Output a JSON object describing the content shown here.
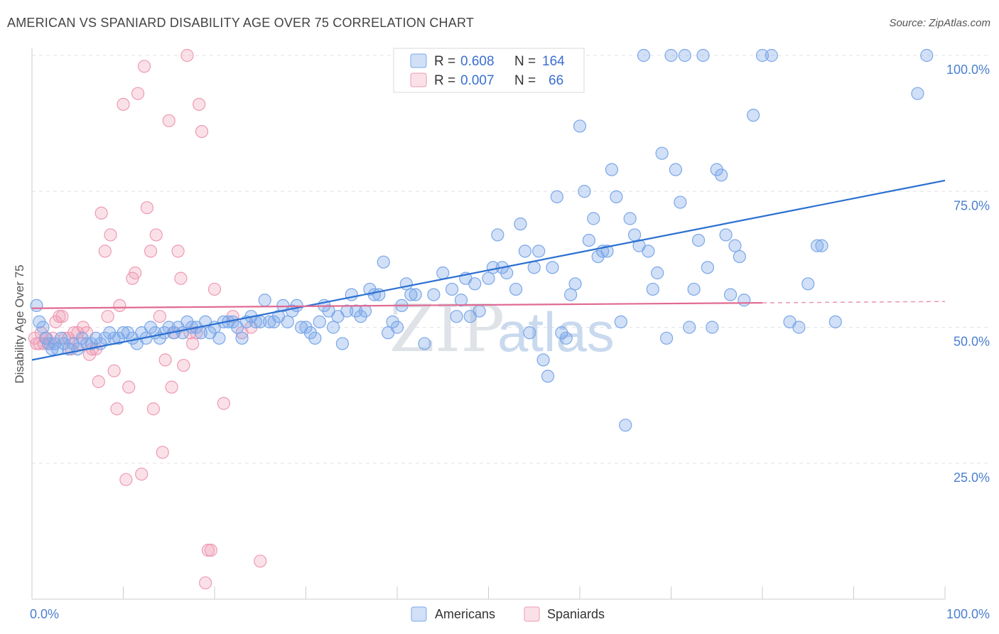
{
  "title": "AMERICAN VS SPANIARD DISABILITY AGE OVER 75 CORRELATION CHART",
  "source": "Source: ZipAtlas.com",
  "watermark": {
    "zip": "ZIP",
    "atlas": "atlas"
  },
  "colors": {
    "americans": "#7aa7e8",
    "americans_fill": "rgba(122,167,232,0.35)",
    "americans_line": "#2a6fd0",
    "spaniards": "#ee9ab3",
    "spaniards_fill": "rgba(238,154,179,0.30)",
    "spaniards_line": "#e06a92",
    "tick": "#4a7fd1"
  },
  "legend": {
    "americans": {
      "r_label": "R =",
      "r_value": "0.608",
      "n_label": "N =",
      "n_value": "164"
    },
    "spaniards": {
      "r_label": "R =",
      "r_value": "0.007",
      "n_label": "N =",
      "n_value": "66"
    }
  },
  "chart_data": {
    "type": "scatter",
    "title": "AMERICAN VS SPANIARD DISABILITY AGE OVER 75 CORRELATION CHART",
    "xlabel": "",
    "ylabel": "Disability Age Over 75",
    "xlim": [
      0,
      100
    ],
    "ylim": [
      0,
      100
    ],
    "x_tick_labels": [
      "0.0%",
      "100.0%"
    ],
    "y_ticks": [
      25,
      50,
      75,
      100
    ],
    "y_tick_labels": [
      "25.0%",
      "50.0%",
      "75.0%",
      "100.0%"
    ],
    "grid": true,
    "legend_position": "top-center",
    "series": [
      {
        "name": "Americans",
        "r": 0.608,
        "n": 164,
        "trend": {
          "x": [
            0,
            100
          ],
          "y": [
            44.0,
            77.0
          ]
        },
        "points": [
          [
            0.5,
            54
          ],
          [
            0.8,
            51
          ],
          [
            1.2,
            50
          ],
          [
            1.5,
            48
          ],
          [
            1.8,
            47
          ],
          [
            2.2,
            46
          ],
          [
            2.5,
            47
          ],
          [
            2.8,
            46
          ],
          [
            3.2,
            48
          ],
          [
            3.5,
            47
          ],
          [
            4,
            46
          ],
          [
            4.5,
            47
          ],
          [
            5,
            46
          ],
          [
            5.5,
            48
          ],
          [
            6,
            47
          ],
          [
            6.5,
            47
          ],
          [
            7,
            48
          ],
          [
            7.5,
            47
          ],
          [
            8,
            48
          ],
          [
            8.5,
            49
          ],
          [
            9,
            48
          ],
          [
            9.5,
            48
          ],
          [
            10,
            49
          ],
          [
            10.5,
            49
          ],
          [
            11,
            48
          ],
          [
            11.5,
            47
          ],
          [
            12,
            49
          ],
          [
            12.5,
            48
          ],
          [
            13,
            50
          ],
          [
            13.5,
            49
          ],
          [
            14,
            48
          ],
          [
            14.5,
            49
          ],
          [
            15,
            50
          ],
          [
            15.5,
            49
          ],
          [
            16,
            50
          ],
          [
            16.5,
            49
          ],
          [
            17,
            51
          ],
          [
            17.5,
            50
          ],
          [
            18,
            50
          ],
          [
            18.5,
            49
          ],
          [
            19,
            51
          ],
          [
            19.5,
            49
          ],
          [
            20,
            50
          ],
          [
            20.5,
            48
          ],
          [
            21,
            51
          ],
          [
            21.5,
            51
          ],
          [
            22,
            51
          ],
          [
            22.5,
            50
          ],
          [
            23,
            48
          ],
          [
            23.5,
            51
          ],
          [
            24,
            52
          ],
          [
            24.5,
            51
          ],
          [
            25,
            51
          ],
          [
            25.5,
            55
          ],
          [
            26,
            51
          ],
          [
            26.5,
            51
          ],
          [
            27,
            52
          ],
          [
            27.5,
            54
          ],
          [
            28,
            51
          ],
          [
            28.5,
            53
          ],
          [
            29,
            54
          ],
          [
            29.5,
            50
          ],
          [
            30,
            50
          ],
          [
            30.5,
            49
          ],
          [
            31,
            48
          ],
          [
            31.5,
            51
          ],
          [
            32,
            54
          ],
          [
            32.5,
            53
          ],
          [
            33,
            50
          ],
          [
            33.5,
            52
          ],
          [
            34,
            47
          ],
          [
            34.5,
            53
          ],
          [
            35,
            56
          ],
          [
            35.5,
            53
          ],
          [
            36,
            52
          ],
          [
            36.5,
            53
          ],
          [
            37,
            57
          ],
          [
            37.5,
            56
          ],
          [
            38,
            56
          ],
          [
            38.5,
            62
          ],
          [
            39,
            49
          ],
          [
            39.5,
            51
          ],
          [
            40,
            50
          ],
          [
            40.5,
            54
          ],
          [
            41,
            58
          ],
          [
            41.5,
            56
          ],
          [
            42,
            56
          ],
          [
            43,
            47
          ],
          [
            44,
            56
          ],
          [
            45,
            60
          ],
          [
            46,
            57
          ],
          [
            46.5,
            52
          ],
          [
            47,
            55
          ],
          [
            47.5,
            59
          ],
          [
            48,
            52
          ],
          [
            48.5,
            58
          ],
          [
            49,
            53
          ],
          [
            50,
            59
          ],
          [
            50.5,
            61
          ],
          [
            51,
            67
          ],
          [
            51.5,
            61
          ],
          [
            52,
            60
          ],
          [
            53,
            57
          ],
          [
            53.5,
            69
          ],
          [
            54,
            64
          ],
          [
            54.5,
            49
          ],
          [
            55,
            61
          ],
          [
            55.5,
            64
          ],
          [
            56,
            44
          ],
          [
            56.5,
            41
          ],
          [
            57,
            61
          ],
          [
            57.5,
            74
          ],
          [
            58,
            49
          ],
          [
            58.5,
            48
          ],
          [
            59,
            56
          ],
          [
            59.5,
            58
          ],
          [
            60,
            87
          ],
          [
            60.5,
            75
          ],
          [
            61,
            66
          ],
          [
            61.5,
            70
          ],
          [
            62,
            63
          ],
          [
            62.5,
            64
          ],
          [
            63,
            64
          ],
          [
            63.5,
            79
          ],
          [
            64,
            74
          ],
          [
            64.5,
            51
          ],
          [
            65,
            32
          ],
          [
            65.5,
            70
          ],
          [
            66,
            67
          ],
          [
            66.5,
            65
          ],
          [
            67,
            100
          ],
          [
            67.5,
            64
          ],
          [
            68,
            57
          ],
          [
            68.5,
            60
          ],
          [
            69,
            82
          ],
          [
            69.5,
            48
          ],
          [
            70,
            100
          ],
          [
            70.5,
            79
          ],
          [
            71,
            73
          ],
          [
            71.5,
            100
          ],
          [
            72,
            50
          ],
          [
            72.5,
            57
          ],
          [
            73,
            66
          ],
          [
            73.5,
            100
          ],
          [
            74,
            61
          ],
          [
            74.5,
            50
          ],
          [
            75,
            79
          ],
          [
            75.5,
            78
          ],
          [
            76,
            67
          ],
          [
            76.5,
            56
          ],
          [
            77,
            65
          ],
          [
            77.5,
            63
          ],
          [
            78,
            55
          ],
          [
            79,
            89
          ],
          [
            80,
            100
          ],
          [
            81,
            100
          ],
          [
            83,
            51
          ],
          [
            84,
            50
          ],
          [
            85,
            58
          ],
          [
            86,
            65
          ],
          [
            86.5,
            65
          ],
          [
            88,
            51
          ],
          [
            97,
            93
          ],
          [
            98,
            100
          ]
        ]
      },
      {
        "name": "Spaniards",
        "r": 0.007,
        "n": 66,
        "trend": {
          "x": [
            0,
            80
          ],
          "y": [
            53.5,
            54.5
          ],
          "dashed_to": 100
        },
        "points": [
          [
            0.3,
            48
          ],
          [
            0.5,
            47
          ],
          [
            0.8,
            47
          ],
          [
            1,
            49
          ],
          [
            1.3,
            47
          ],
          [
            1.6,
            48
          ],
          [
            2,
            47
          ],
          [
            2.3,
            48
          ],
          [
            2.6,
            51
          ],
          [
            3,
            52
          ],
          [
            3.3,
            52
          ],
          [
            3.6,
            48
          ],
          [
            4,
            48
          ],
          [
            4.3,
            46
          ],
          [
            4.6,
            49
          ],
          [
            5,
            49
          ],
          [
            5.3,
            47
          ],
          [
            5.6,
            50
          ],
          [
            6,
            49
          ],
          [
            6.3,
            45
          ],
          [
            6.6,
            46
          ],
          [
            7,
            46
          ],
          [
            7.3,
            40
          ],
          [
            7.6,
            71
          ],
          [
            8,
            64
          ],
          [
            8.3,
            52
          ],
          [
            8.6,
            67
          ],
          [
            9,
            42
          ],
          [
            9.3,
            35
          ],
          [
            9.6,
            54
          ],
          [
            10,
            91
          ],
          [
            10.3,
            22
          ],
          [
            10.6,
            39
          ],
          [
            11,
            59
          ],
          [
            11.3,
            60
          ],
          [
            11.6,
            93
          ],
          [
            12,
            23
          ],
          [
            12.3,
            98
          ],
          [
            12.6,
            72
          ],
          [
            13,
            64
          ],
          [
            13.3,
            35
          ],
          [
            13.6,
            67
          ],
          [
            14,
            52
          ],
          [
            14.3,
            27
          ],
          [
            14.6,
            44
          ],
          [
            15,
            88
          ],
          [
            15.3,
            39
          ],
          [
            15.6,
            49
          ],
          [
            16,
            64
          ],
          [
            16.3,
            59
          ],
          [
            16.6,
            43
          ],
          [
            17,
            100
          ],
          [
            17.3,
            49
          ],
          [
            17.6,
            47
          ],
          [
            18,
            49
          ],
          [
            18.3,
            91
          ],
          [
            18.6,
            86
          ],
          [
            19,
            3
          ],
          [
            19.3,
            9
          ],
          [
            19.6,
            9
          ],
          [
            20,
            57
          ],
          [
            21,
            36
          ],
          [
            22,
            52
          ],
          [
            23,
            49
          ],
          [
            24,
            50
          ],
          [
            25,
            7
          ]
        ]
      }
    ]
  },
  "bottom_legend": {
    "americans": "Americans",
    "spaniards": "Spaniards"
  }
}
